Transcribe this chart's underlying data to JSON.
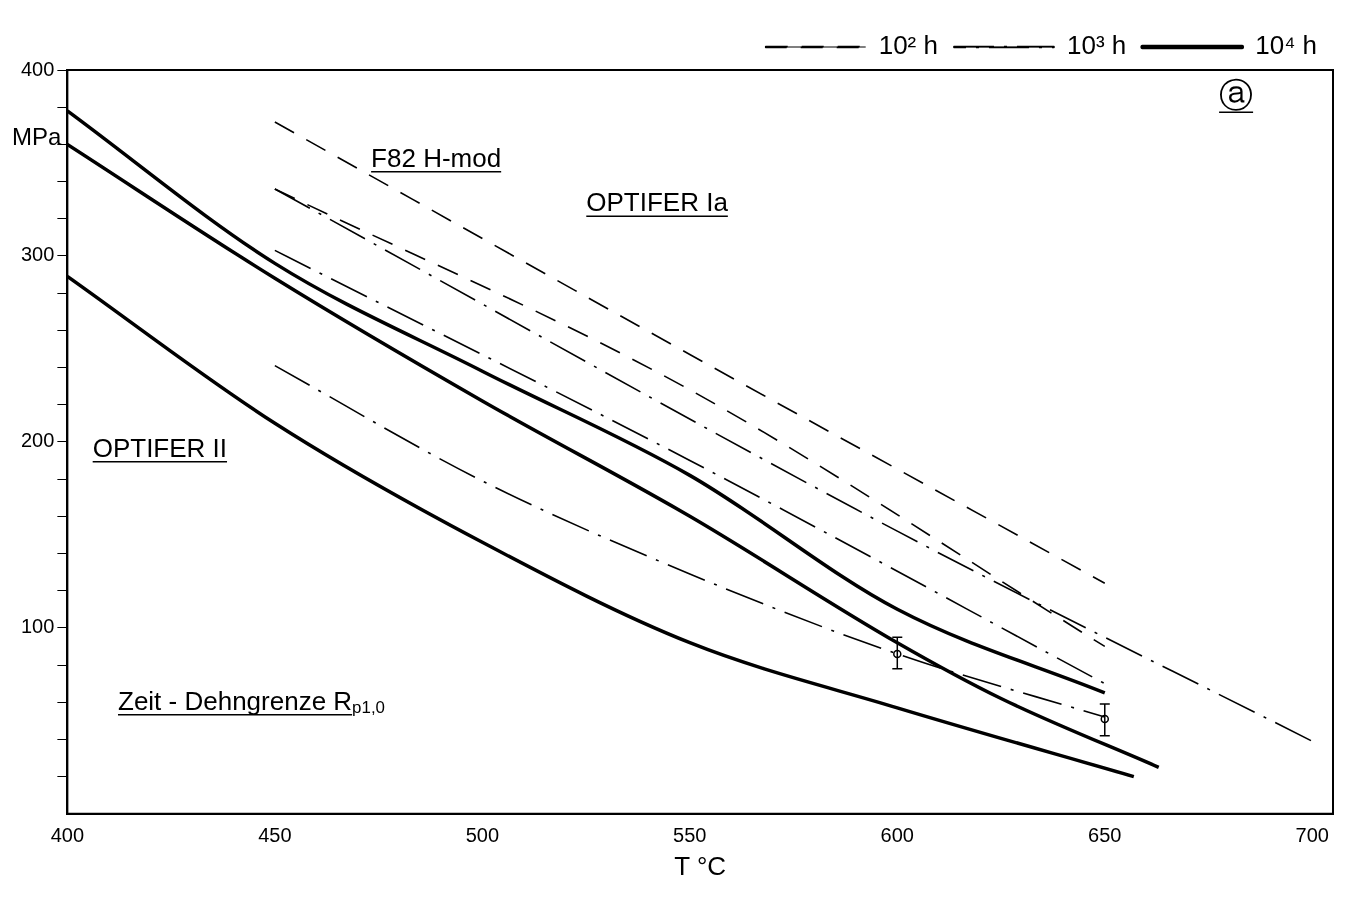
{
  "chart_data": {
    "type": "line",
    "xlabel": "T °C",
    "ylabel": "MPa",
    "xlim": [
      400,
      705
    ],
    "ylim": [
      0,
      400
    ],
    "xticks": [
      400,
      450,
      500,
      550,
      600,
      650,
      700
    ],
    "yticks": [
      {
        "value": 20,
        "label": null
      },
      {
        "value": 40,
        "label": null
      },
      {
        "value": 60,
        "label": null
      },
      {
        "value": 80,
        "label": null
      },
      100,
      {
        "value": 120,
        "label": null
      },
      {
        "value": 140,
        "label": null
      },
      {
        "value": 160,
        "label": null
      },
      {
        "value": 180,
        "label": null
      },
      200,
      {
        "value": 220,
        "label": null
      },
      {
        "value": 240,
        "label": null
      },
      {
        "value": 260,
        "label": null
      },
      {
        "value": 280,
        "label": null
      },
      300,
      {
        "value": 320,
        "label": null
      },
      {
        "value": 340,
        "label": null
      },
      {
        "value": 360,
        "label": null
      },
      {
        "value": 380,
        "label": null
      },
      400
    ],
    "grid": false,
    "legend": "top right",
    "marker": "none",
    "series": [
      {
        "name": "10² h",
        "color": "#000000",
        "line_style": "dashed",
        "x": [
          450,
          550,
          650
        ],
        "values": [
          372,
          247,
          124
        ]
      },
      {
        "name": "10³ h",
        "color": "#000000",
        "line_style": "dashdot",
        "x": [
          450,
          600,
          700
        ],
        "values": [
          336,
          152,
          39
        ]
      },
      {
        "name": "10⁴ h",
        "color": "#000000",
        "line_style": "solid",
        "x": [
          400,
          450,
          500,
          550,
          600,
          650
        ],
        "values": [
          378,
          296,
          238,
          182,
          110,
          65
        ]
      },
      {
        "color": "#000000",
        "line_style": "dashed",
        "x": [
          450,
          550,
          650
        ],
        "values": [
          336,
          228,
          90
        ]
      },
      {
        "color": "#000000",
        "line_style": "dashdot",
        "x": [
          450,
          550,
          650
        ],
        "values": [
          303,
          190,
          70
        ]
      },
      {
        "color": "#000000",
        "line_style": "dashdot",
        "x": [
          450,
          500,
          550,
          600,
          650
        ],
        "values": [
          241,
          179,
          129,
          86,
          52
        ]
      },
      {
        "color": "#000000",
        "line_style": "solid",
        "x": [
          400,
          450,
          500,
          550,
          600,
          625,
          663
        ],
        "values": [
          360,
          288,
          222,
          160,
          92,
          62,
          25
        ]
      },
      {
        "color": "#000000",
        "line_style": "solid",
        "x": [
          400,
          450,
          500,
          550,
          600,
          657
        ],
        "values": [
          289,
          210,
          146,
          92,
          57,
          20
        ]
      },
      {
        "type": "scatter",
        "color": "#000000",
        "marker": "circle",
        "x": [
          600
        ],
        "values": [
          86
        ],
        "errors": [
          [
            78,
            95
          ]
        ]
      },
      {
        "type": "scatter",
        "color": "#000000",
        "marker": "circle",
        "x": [
          650
        ],
        "values": [
          51
        ],
        "errors": [
          [
            42,
            59
          ]
        ]
      }
    ],
    "annotations": [
      "F82 H-mod",
      "OPTIFER Ia",
      "OPTIFER II",
      "Zeit - Dehngrenze R$_{p1,0}$",
      "ⓐ"
    ]
  }
}
